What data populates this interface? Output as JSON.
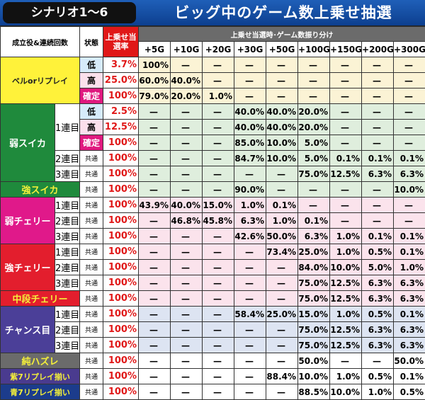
{
  "header": {
    "scenario": "シナリオ1～6",
    "title": "ビッグ中のゲーム数上乗せ抽選",
    "col_role": "成立役&連続回数",
    "col_state": "状態",
    "col_rate": "上乗せ当選率",
    "col_dist": "上乗せ当選時･ゲーム数振り分け",
    "bonus_cols": [
      "+5G",
      "+10G",
      "+20G",
      "+30G",
      "+50G",
      "+100G",
      "+150G",
      "+200G",
      "+300G"
    ]
  },
  "colors": {
    "bell": "#fff23a",
    "weak_suika": "#1f8a3c",
    "strong_suika": "#1f8a3c",
    "weak_cherry": "#e0198a",
    "strong_cherry": "#e31e2d",
    "chuuban": "#e31e2d",
    "chance": "#4b3f98",
    "hazure": "#6b6b6b",
    "purple7": "#4a3b8f",
    "blue7": "#1c3c8c"
  },
  "groups": [
    {
      "role": "ベルorリプレイ",
      "key": "bell",
      "text": "#222",
      "row_bg": "#fbf3d5",
      "rows": [
        {
          "streak": null,
          "state": "低",
          "rate": "3.7%",
          "values": [
            "100%",
            "—",
            "—",
            "—",
            "—",
            "—",
            "—",
            "—",
            "—"
          ]
        },
        {
          "streak": null,
          "state": "高",
          "rate": "25.0%",
          "values": [
            "60.0%",
            "40.0%",
            "—",
            "—",
            "—",
            "—",
            "—",
            "—",
            "—"
          ]
        },
        {
          "streak": null,
          "state": "確定",
          "rate": "100%",
          "values": [
            "79.0%",
            "20.0%",
            "1.0%",
            "—",
            "—",
            "—",
            "—",
            "—",
            "—"
          ]
        }
      ]
    },
    {
      "role": "弱スイカ",
      "key": "weak_suika",
      "text": "#fff",
      "row_bg": "#dfeedd",
      "rows": [
        {
          "streak": "1連目",
          "state": "低",
          "rate": "2.5%",
          "values": [
            "—",
            "—",
            "—",
            "40.0%",
            "40.0%",
            "20.0%",
            "—",
            "—",
            "—"
          ]
        },
        {
          "streak": "1連目",
          "state": "高",
          "rate": "12.5%",
          "values": [
            "—",
            "—",
            "—",
            "40.0%",
            "40.0%",
            "20.0%",
            "—",
            "—",
            "—"
          ]
        },
        {
          "streak": "1連目",
          "state": "確定",
          "rate": "100%",
          "values": [
            "—",
            "—",
            "—",
            "85.0%",
            "10.0%",
            "5.0%",
            "—",
            "—",
            "—"
          ]
        },
        {
          "streak": "2連目",
          "state": "共通",
          "rate": "100%",
          "values": [
            "—",
            "—",
            "—",
            "84.7%",
            "10.0%",
            "5.0%",
            "0.1%",
            "0.1%",
            "0.1%"
          ]
        },
        {
          "streak": "3連目",
          "state": "共通",
          "rate": "100%",
          "values": [
            "—",
            "—",
            "—",
            "—",
            "—",
            "75.0%",
            "12.5%",
            "6.3%",
            "6.3%"
          ]
        }
      ]
    },
    {
      "role": "強スイカ",
      "key": "strong_suika",
      "text": "#f5f03a",
      "row_bg": "#dfeedd",
      "rows": [
        {
          "streak": null,
          "state": "共通",
          "rate": "100%",
          "values": [
            "—",
            "—",
            "—",
            "90.0%",
            "—",
            "—",
            "—",
            "—",
            "10.0%"
          ]
        }
      ]
    },
    {
      "role": "弱チェリー",
      "key": "weak_cherry",
      "text": "#fff",
      "row_bg": "#fbe3ec",
      "rows": [
        {
          "streak": "1連目",
          "state": "共通",
          "rate": "100%",
          "values": [
            "43.9%",
            "40.0%",
            "15.0%",
            "1.0%",
            "0.1%",
            "—",
            "—",
            "—",
            "—"
          ]
        },
        {
          "streak": "2連目",
          "state": "共通",
          "rate": "100%",
          "values": [
            "—",
            "46.8%",
            "45.8%",
            "6.3%",
            "1.0%",
            "0.1%",
            "—",
            "—",
            "—"
          ]
        },
        {
          "streak": "3連目",
          "state": "共通",
          "rate": "100%",
          "values": [
            "—",
            "—",
            "—",
            "42.6%",
            "50.0%",
            "6.3%",
            "1.0%",
            "0.1%",
            "0.1%"
          ]
        }
      ]
    },
    {
      "role": "強チェリー",
      "key": "strong_cherry",
      "text": "#fff",
      "row_bg": "#fbe3ec",
      "rows": [
        {
          "streak": "1連目",
          "state": "共通",
          "rate": "100%",
          "values": [
            "—",
            "—",
            "—",
            "—",
            "73.4%",
            "25.0%",
            "1.0%",
            "0.5%",
            "0.1%"
          ]
        },
        {
          "streak": "2連目",
          "state": "共通",
          "rate": "100%",
          "values": [
            "—",
            "—",
            "—",
            "—",
            "—",
            "84.0%",
            "10.0%",
            "5.0%",
            "1.0%"
          ]
        },
        {
          "streak": "3連目",
          "state": "共通",
          "rate": "100%",
          "values": [
            "—",
            "—",
            "—",
            "—",
            "—",
            "75.0%",
            "12.5%",
            "6.3%",
            "6.3%"
          ]
        }
      ]
    },
    {
      "role": "中段チェリー",
      "key": "chuuban",
      "text": "#f5f03a",
      "row_bg": "#fbe3ec",
      "rows": [
        {
          "streak": null,
          "state": "共通",
          "rate": "100%",
          "values": [
            "—",
            "—",
            "—",
            "—",
            "—",
            "75.0%",
            "12.5%",
            "6.3%",
            "6.3%"
          ]
        }
      ]
    },
    {
      "role": "チャンス目",
      "key": "chance",
      "text": "#fff",
      "row_bg": "#dde4f2",
      "rows": [
        {
          "streak": "1連目",
          "state": "共通",
          "rate": "100%",
          "values": [
            "—",
            "—",
            "—",
            "58.4%",
            "25.0%",
            "15.0%",
            "1.0%",
            "0.5%",
            "0.1%"
          ]
        },
        {
          "streak": "2連目",
          "state": "共通",
          "rate": "100%",
          "values": [
            "—",
            "—",
            "—",
            "—",
            "—",
            "75.0%",
            "12.5%",
            "6.3%",
            "6.3%"
          ]
        },
        {
          "streak": "3連目",
          "state": "共通",
          "rate": "100%",
          "values": [
            "—",
            "—",
            "—",
            "—",
            "—",
            "75.0%",
            "12.5%",
            "6.3%",
            "6.3%"
          ]
        }
      ]
    },
    {
      "role": "純ハズレ",
      "key": "hazure",
      "text": "#f5f03a",
      "row_bg": "#ffffff",
      "rows": [
        {
          "streak": null,
          "state": "共通",
          "rate": "100%",
          "values": [
            "—",
            "—",
            "—",
            "—",
            "—",
            "50.0%",
            "—",
            "—",
            "50.0%"
          ]
        }
      ]
    },
    {
      "role": "紫7リプレイ揃い",
      "key": "purple7",
      "text": "#f5f03a",
      "row_bg": "#ffffff",
      "rows": [
        {
          "streak": null,
          "state": "共通",
          "rate": "100%",
          "values": [
            "—",
            "—",
            "—",
            "—",
            "88.4%",
            "10.0%",
            "1.0%",
            "0.5%",
            "0.1%"
          ]
        }
      ]
    },
    {
      "role": "青7リプレイ揃い",
      "key": "blue7",
      "text": "#f5f03a",
      "row_bg": "#ffffff",
      "rows": [
        {
          "streak": null,
          "state": "共通",
          "rate": "100%",
          "values": [
            "—",
            "—",
            "—",
            "—",
            "—",
            "88.5%",
            "10.0%",
            "1.0%",
            "0.5%"
          ]
        }
      ]
    }
  ]
}
